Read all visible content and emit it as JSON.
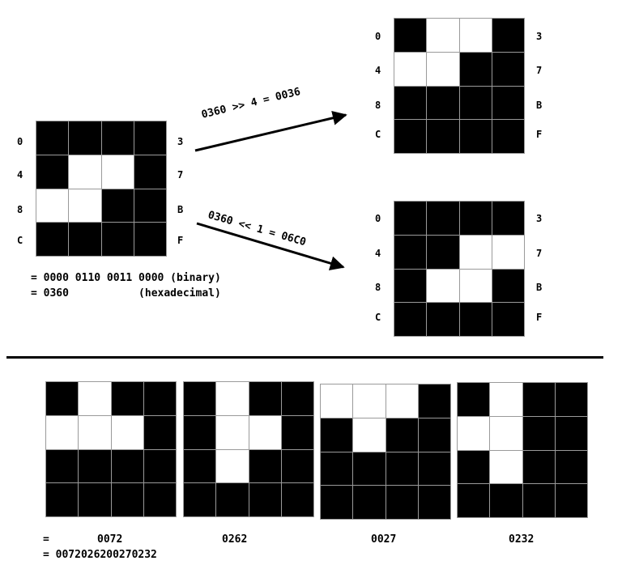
{
  "source": {
    "grid": [
      [
        0,
        0,
        0,
        0
      ],
      [
        0,
        1,
        1,
        0
      ],
      [
        1,
        1,
        0,
        0
      ],
      [
        0,
        0,
        0,
        0
      ]
    ],
    "row_labels_left": [
      "0",
      "4",
      "8",
      "C"
    ],
    "row_labels_right": [
      "3",
      "7",
      "B",
      "F"
    ],
    "eq_binary": "= 0000 0110 0011 0000 (binary)",
    "eq_hex": "= 0360           (hexadecimal)"
  },
  "shift_right": {
    "label": "0360 >> 4 = 0036",
    "grid": [
      [
        0,
        1,
        1,
        0
      ],
      [
        1,
        1,
        0,
        0
      ],
      [
        0,
        0,
        0,
        0
      ],
      [
        0,
        0,
        0,
        0
      ]
    ],
    "row_labels_left": [
      "0",
      "4",
      "8",
      "C"
    ],
    "row_labels_right": [
      "3",
      "7",
      "B",
      "F"
    ]
  },
  "shift_left": {
    "label": "0360 << 1 = 06C0",
    "grid": [
      [
        0,
        0,
        0,
        0
      ],
      [
        0,
        0,
        1,
        1
      ],
      [
        0,
        1,
        1,
        0
      ],
      [
        0,
        0,
        0,
        0
      ]
    ],
    "row_labels_left": [
      "0",
      "4",
      "8",
      "C"
    ],
    "row_labels_right": [
      "3",
      "7",
      "B",
      "F"
    ]
  },
  "rotations": {
    "prefix": "=",
    "items": [
      {
        "value": "0072",
        "grid": [
          [
            0,
            1,
            0,
            0
          ],
          [
            1,
            1,
            1,
            0
          ],
          [
            0,
            0,
            0,
            0
          ],
          [
            0,
            0,
            0,
            0
          ]
        ]
      },
      {
        "value": "0262",
        "grid": [
          [
            0,
            1,
            0,
            0
          ],
          [
            0,
            1,
            1,
            0
          ],
          [
            0,
            1,
            0,
            0
          ],
          [
            0,
            0,
            0,
            0
          ]
        ]
      },
      {
        "value": "0027",
        "grid": [
          [
            1,
            1,
            1,
            0
          ],
          [
            0,
            1,
            0,
            0
          ],
          [
            0,
            0,
            0,
            0
          ],
          [
            0,
            0,
            0,
            0
          ]
        ]
      },
      {
        "value": "0232",
        "grid": [
          [
            0,
            1,
            0,
            0
          ],
          [
            1,
            1,
            0,
            0
          ],
          [
            0,
            1,
            0,
            0
          ],
          [
            0,
            0,
            0,
            0
          ]
        ]
      }
    ],
    "combined": "= 0072026200270232"
  }
}
